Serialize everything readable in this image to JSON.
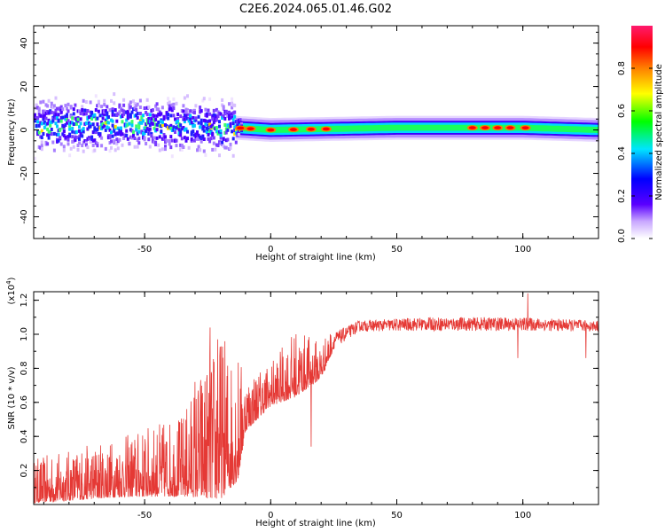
{
  "title": "C2E6.2024.065.01.46.G02",
  "chart_data": [
    {
      "type": "heatmap",
      "xlabel": "Height of straight line (km)",
      "ylabel": "Frequency (Hz)",
      "xlim": [
        -94,
        130
      ],
      "ylim": [
        -50,
        48
      ],
      "xticks": [
        -50,
        0,
        50,
        100
      ],
      "yticks": [
        -40,
        -20,
        0,
        20,
        40
      ],
      "colorbar": {
        "label": "Normalized spectral amplitude",
        "range": [
          0,
          1
        ],
        "ticks": [
          0.0,
          0.2,
          0.4,
          0.6,
          0.8
        ],
        "tick_labels": [
          "0.0",
          "0.2",
          "0.4",
          "0.6",
          "0.8"
        ]
      },
      "ridge": {
        "description_points": [
          {
            "x": -94,
            "f": 1
          },
          {
            "x": -60,
            "f": 3
          },
          {
            "x": -40,
            "f": 2
          },
          {
            "x": -14,
            "f": 1
          },
          {
            "x": 0,
            "f": 0
          },
          {
            "x": 50,
            "f": 1
          },
          {
            "x": 100,
            "f": 1
          },
          {
            "x": 130,
            "f": 0
          }
        ],
        "hotspots_x": [
          -12,
          -8,
          0,
          9,
          16,
          22,
          80,
          85,
          90,
          95,
          101
        ]
      },
      "grid": false
    },
    {
      "type": "line",
      "xlabel": "Height of straight line (km)",
      "ylabel": "SNR (10 * v/v)",
      "y_multiplier": "(x10",
      "y_multiplier_exp": "4",
      "xlim": [
        -94,
        130
      ],
      "ylim": [
        0.0,
        1.25
      ],
      "xticks": [
        -50,
        0,
        50,
        100
      ],
      "yticks": [
        0.2,
        0.4,
        0.6,
        0.8,
        1.0,
        1.2
      ],
      "ytick_labels": [
        "0.2",
        "0.4",
        "0.6",
        "0.8",
        "1.0",
        "1.2"
      ],
      "color": "#e53935",
      "envelope": [
        {
          "x": -94,
          "base": 0.08,
          "amp": 0.12
        },
        {
          "x": -60,
          "base": 0.14,
          "amp": 0.16
        },
        {
          "x": -35,
          "base": 0.18,
          "amp": 0.22
        },
        {
          "x": -28,
          "base": 0.25,
          "amp": 0.35
        },
        {
          "x": -20,
          "base": 0.3,
          "amp": 0.45
        },
        {
          "x": -13,
          "base": 0.35,
          "amp": 0.35
        },
        {
          "x": -10,
          "base": 0.52,
          "amp": 0.15
        },
        {
          "x": 0,
          "base": 0.65,
          "amp": 0.12
        },
        {
          "x": 10,
          "base": 0.74,
          "amp": 0.18
        },
        {
          "x": 20,
          "base": 0.8,
          "amp": 0.1
        },
        {
          "x": 25,
          "base": 0.95,
          "amp": 0.06
        },
        {
          "x": 35,
          "base": 1.04,
          "amp": 0.04
        },
        {
          "x": 60,
          "base": 1.05,
          "amp": 0.05
        },
        {
          "x": 100,
          "base": 1.05,
          "amp": 0.05
        },
        {
          "x": 130,
          "base": 1.04,
          "amp": 0.04
        }
      ],
      "spikes": [
        {
          "x": -24,
          "y": 1.04
        },
        {
          "x": -21,
          "y": 0.97
        },
        {
          "x": -30,
          "y": 0.72
        },
        {
          "x": 16,
          "y": 0.34
        },
        {
          "x": 10,
          "y": 1.0
        },
        {
          "x": 102,
          "y": 1.24
        },
        {
          "x": 98,
          "y": 0.86
        },
        {
          "x": 125,
          "y": 0.86
        }
      ]
    }
  ]
}
